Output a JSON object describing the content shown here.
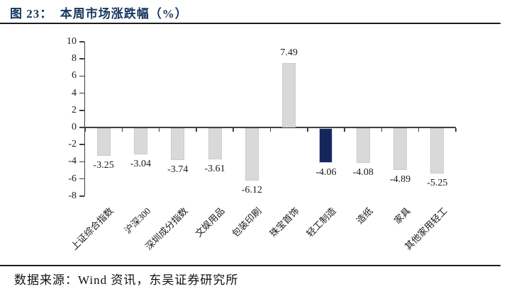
{
  "header": {
    "title": "图 23：  本周市场涨跌幅（%）"
  },
  "footer": {
    "source": "数据来源：Wind 资讯，东吴证券研究所"
  },
  "colors": {
    "title": "#17375e",
    "rule": "#1c1c1c",
    "axis": "#3f3f3f",
    "text": "#1a1a1a",
    "bar_default": "#d9d9d9",
    "bar_default_border": "#cbcbcb",
    "bar_highlight": "#15265d",
    "bar_highlight_border": "#ccd3e2"
  },
  "chart_data": {
    "type": "bar",
    "title": "本周市场涨跌幅（%）",
    "categories": [
      "上证综合指数",
      "沪深300",
      "深圳成分指数",
      "文娱用品",
      "包装印刷",
      "珠宝首饰",
      "轻工制造",
      "造纸",
      "家具",
      "其他家用轻工"
    ],
    "values": [
      -3.25,
      -3.04,
      -3.74,
      -3.61,
      -6.12,
      7.49,
      -4.06,
      -4.08,
      -4.89,
      -5.25
    ],
    "highlight_index": 6,
    "highlight_category": "轻工制造",
    "xlabel": "",
    "ylabel": "",
    "ylim": [
      -8,
      10
    ],
    "yticks": [
      10,
      8,
      6,
      4,
      2,
      0,
      -2,
      -4,
      -6,
      -8
    ],
    "grid": false,
    "data_labels": true,
    "legend": false
  }
}
